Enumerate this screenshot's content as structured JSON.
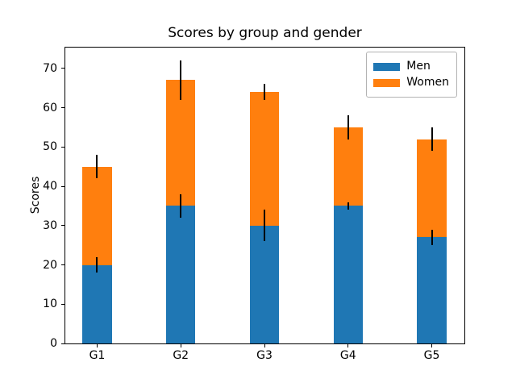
{
  "chart_data": {
    "type": "bar",
    "stacked": true,
    "title": "Scores by group and gender",
    "xlabel": "",
    "ylabel": "Scores",
    "categories": [
      "G1",
      "G2",
      "G3",
      "G4",
      "G5"
    ],
    "series": [
      {
        "name": "Men",
        "color": "#1f77b4",
        "values": [
          20,
          35,
          30,
          35,
          27
        ],
        "std": [
          2,
          3,
          4,
          1,
          2
        ]
      },
      {
        "name": "Women",
        "color": "#ff7f0e",
        "values": [
          25,
          32,
          34,
          20,
          25
        ],
        "std": [
          3,
          5,
          2,
          3,
          3
        ]
      }
    ],
    "error_bar_color": "#000000",
    "yticks": [
      0,
      10,
      20,
      30,
      40,
      50,
      60,
      70
    ],
    "ylim": [
      0,
      75.5
    ],
    "xlim": [
      -0.39,
      4.39
    ],
    "bar_width": 0.35,
    "grid": false,
    "legend": {
      "position": "upper right"
    }
  }
}
